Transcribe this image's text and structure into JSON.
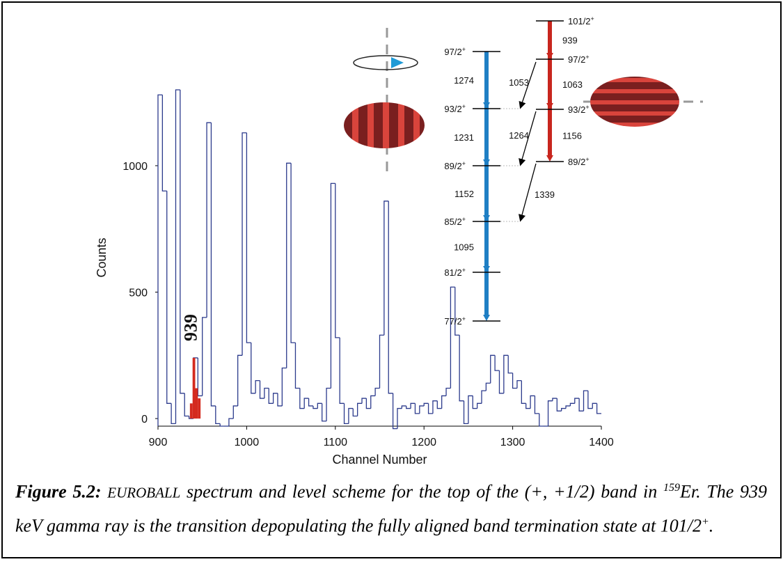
{
  "chart_data": {
    "type": "step",
    "xlabel": "Channel Number",
    "ylabel": "Counts",
    "xlim": [
      900,
      1400
    ],
    "ylim": [
      -30,
      1300
    ],
    "xticks": [
      900,
      1000,
      1100,
      1200,
      1300,
      1400
    ],
    "yticks": [
      0,
      500,
      1000
    ],
    "color": "#2b3a8c",
    "x": [
      900,
      905,
      910,
      915,
      920,
      925,
      930,
      935,
      940,
      945,
      950,
      955,
      960,
      965,
      970,
      975,
      980,
      985,
      990,
      995,
      1000,
      1005,
      1010,
      1015,
      1020,
      1025,
      1030,
      1035,
      1040,
      1045,
      1050,
      1055,
      1060,
      1065,
      1070,
      1075,
      1080,
      1085,
      1090,
      1095,
      1100,
      1105,
      1110,
      1115,
      1120,
      1125,
      1130,
      1135,
      1140,
      1145,
      1150,
      1155,
      1160,
      1165,
      1170,
      1175,
      1180,
      1185,
      1190,
      1195,
      1200,
      1205,
      1210,
      1215,
      1220,
      1225,
      1230,
      1235,
      1240,
      1245,
      1250,
      1255,
      1260,
      1265,
      1270,
      1275,
      1280,
      1285,
      1290,
      1295,
      1300,
      1305,
      1310,
      1315,
      1320,
      1325,
      1330,
      1335,
      1340,
      1345,
      1350,
      1355,
      1360,
      1365,
      1370,
      1375,
      1380,
      1385,
      1390,
      1395
    ],
    "values": [
      1280,
      900,
      60,
      -20,
      1300,
      100,
      10,
      0,
      240,
      90,
      400,
      1170,
      50,
      -20,
      -30,
      -30,
      0,
      50,
      250,
      1130,
      300,
      100,
      150,
      80,
      120,
      60,
      100,
      50,
      200,
      1010,
      300,
      120,
      40,
      80,
      50,
      40,
      60,
      -10,
      120,
      930,
      320,
      60,
      -20,
      40,
      10,
      60,
      80,
      40,
      90,
      120,
      330,
      860,
      100,
      -40,
      40,
      50,
      40,
      60,
      20,
      50,
      60,
      20,
      70,
      40,
      90,
      120,
      520,
      330,
      70,
      -20,
      90,
      40,
      60,
      110,
      140,
      250,
      190,
      100,
      250,
      180,
      120,
      150,
      60,
      40,
      90,
      20,
      -30,
      -30,
      70,
      80,
      30,
      40,
      50,
      60,
      80,
      30,
      110,
      40,
      60,
      20
    ],
    "highlight": {
      "x": [
        936,
        939,
        942,
        945
      ],
      "values": [
        60,
        240,
        120,
        80
      ],
      "color": "#d42a1e",
      "label": "939"
    }
  },
  "level_scheme": {
    "bands": [
      {
        "color": "#1f7fc4",
        "levels": [
          {
            "spin": "97/2",
            "parity": "+"
          },
          {
            "spin": "93/2",
            "parity": "+"
          },
          {
            "spin": "89/2",
            "parity": "+"
          },
          {
            "spin": "85/2",
            "parity": "+"
          },
          {
            "spin": "81/2",
            "parity": "+"
          },
          {
            "spin": "77/2",
            "parity": "+"
          }
        ],
        "transitions": [
          "1274",
          "1231",
          "1152",
          "1095"
        ]
      },
      {
        "color": "#c8261e",
        "levels": [
          {
            "spin": "101/2",
            "parity": "+"
          },
          {
            "spin": "97/2",
            "parity": "+"
          },
          {
            "spin": "93/2",
            "parity": "+"
          },
          {
            "spin": "89/2",
            "parity": "+"
          }
        ],
        "transitions": [
          "939",
          "1063",
          "1156"
        ]
      }
    ],
    "crossovers": [
      "1053",
      "1264",
      "1339"
    ]
  },
  "caption": {
    "label": "Figure 5.2:",
    "lead": "EUROBALL",
    "text1": " spectrum and level scheme for the top of the (+, +1/2) band in ",
    "sup1": "159",
    "text2": "Er. The 939 keV gamma ray is the transition depopulating the fully aligned band termination state at 101/2",
    "sup2": "+",
    "text3": "."
  }
}
